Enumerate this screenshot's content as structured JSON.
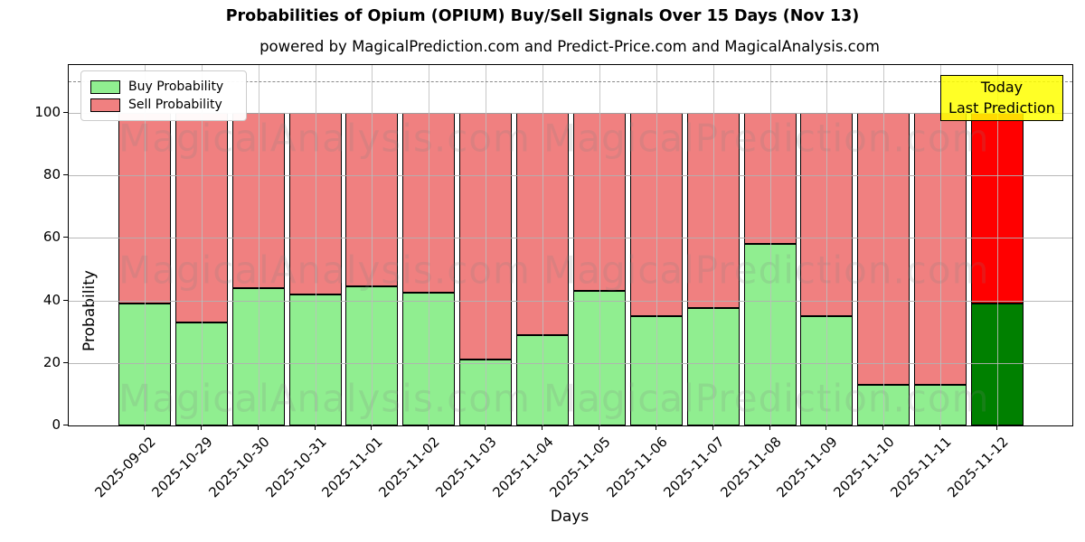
{
  "title": "Probabilities of Opium (OPIUM) Buy/Sell Signals Over 15 Days (Nov 13)",
  "subtitle": "powered by MagicalPrediction.com and Predict-Price.com and MagicalAnalysis.com",
  "annotation": {
    "line1": "Today",
    "line2": "Last Prediction"
  },
  "watermarks": {
    "left": "MagicalAnalysis.com",
    "right": "MagicalPrediction.com"
  },
  "colors": {
    "buy": "#90ee90",
    "sell": "#f08080",
    "today_buy": "#008000",
    "today_sell": "#ff0000",
    "annotation_bg": "#ffff00",
    "grid": "#b0b0b0",
    "dashed_line": "#8a8a8a",
    "bar_edge": "#000000"
  },
  "chart_data": {
    "type": "bar",
    "stacked": true,
    "title": "Probabilities of Opium (OPIUM) Buy/Sell Signals Over 15 Days (Nov 13)",
    "xlabel": "Days",
    "ylabel": "Probability",
    "categories": [
      "2025-09-02",
      "2025-10-29",
      "2025-10-30",
      "2025-10-31",
      "2025-11-01",
      "2025-11-02",
      "2025-11-03",
      "2025-11-04",
      "2025-11-05",
      "2025-11-06",
      "2025-11-07",
      "2025-11-08",
      "2025-11-09",
      "2025-11-10",
      "2025-11-11",
      "2025-11-12"
    ],
    "series": [
      {
        "name": "Buy Probability",
        "color": "#90ee90",
        "values": [
          39,
          33,
          44,
          42,
          44.5,
          42.5,
          21,
          29,
          43,
          35,
          37.5,
          58,
          35,
          13,
          13,
          39
        ]
      },
      {
        "name": "Sell Probability",
        "color": "#f08080",
        "values": [
          61,
          67,
          56,
          58,
          55.5,
          57.5,
          79,
          71,
          57,
          65,
          62.5,
          42,
          65,
          87,
          87,
          61
        ]
      }
    ],
    "today_index": 15,
    "today_colors": {
      "buy": "#008000",
      "sell": "#ff0000"
    },
    "yticks": [
      0,
      20,
      40,
      60,
      80,
      100
    ],
    "ylim": [
      0,
      115.3
    ],
    "dashed_line_y": 110,
    "grid": true,
    "legend_position": "upper left"
  }
}
